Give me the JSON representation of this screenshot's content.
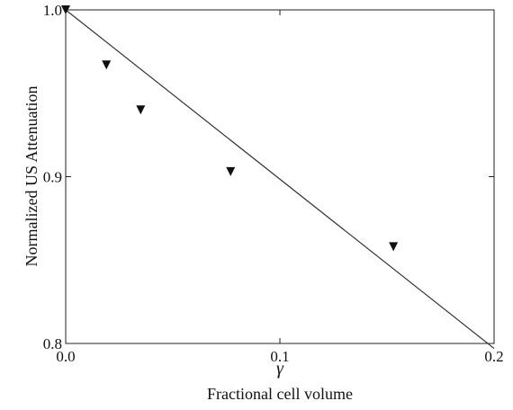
{
  "chart_data": {
    "type": "scatter",
    "xlabel_symbol": "γ",
    "xlabel": "Fractional cell volume",
    "ylabel": "Normalized US Attenuation",
    "xlim": [
      0.0,
      0.2
    ],
    "ylim": [
      0.8,
      1.0
    ],
    "xticks": [
      0.0,
      0.1,
      0.2
    ],
    "xtick_labels": [
      "0.0",
      "0.1",
      "0.2"
    ],
    "yticks": [
      0.8,
      0.9,
      1.0
    ],
    "ytick_labels": [
      "0.8",
      "0.9",
      "1.0"
    ],
    "grid": false,
    "series": [
      {
        "marker": "triangle-down",
        "color": "#111111",
        "x": [
          0.0,
          0.019,
          0.035,
          0.077,
          0.153
        ],
        "y": [
          1.0,
          0.967,
          0.94,
          0.903,
          0.858
        ]
      }
    ],
    "fit_line": {
      "color": "#333333",
      "x": [
        0.0,
        0.2
      ],
      "y": [
        1.0,
        0.797
      ]
    }
  }
}
